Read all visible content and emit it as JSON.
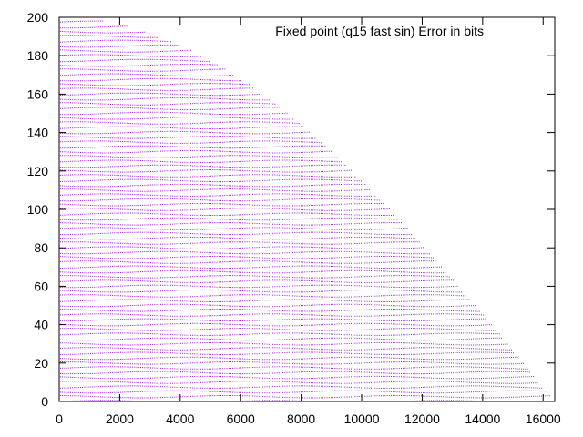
{
  "chart_data": {
    "type": "scatter",
    "title": "",
    "xlabel": "",
    "ylabel": "",
    "xlim": [
      0,
      16384
    ],
    "ylim": [
      0,
      200
    ],
    "x_ticks": [
      0,
      2000,
      4000,
      6000,
      8000,
      10000,
      12000,
      14000,
      16000
    ],
    "y_ticks": [
      0,
      20,
      40,
      60,
      80,
      100,
      120,
      140,
      160,
      180,
      200
    ],
    "grid": false,
    "legend_position": "top-right",
    "series": [
      {
        "name": "Fixed point (q15 fast sin) Error in bits",
        "color": "#9400D3",
        "marker": "dot",
        "pattern": "dense bands of points under the envelope y = 200*cos(pi*x/32768) for x in [0,16384], with points approximately every 2.5 units of y"
      }
    ]
  }
}
